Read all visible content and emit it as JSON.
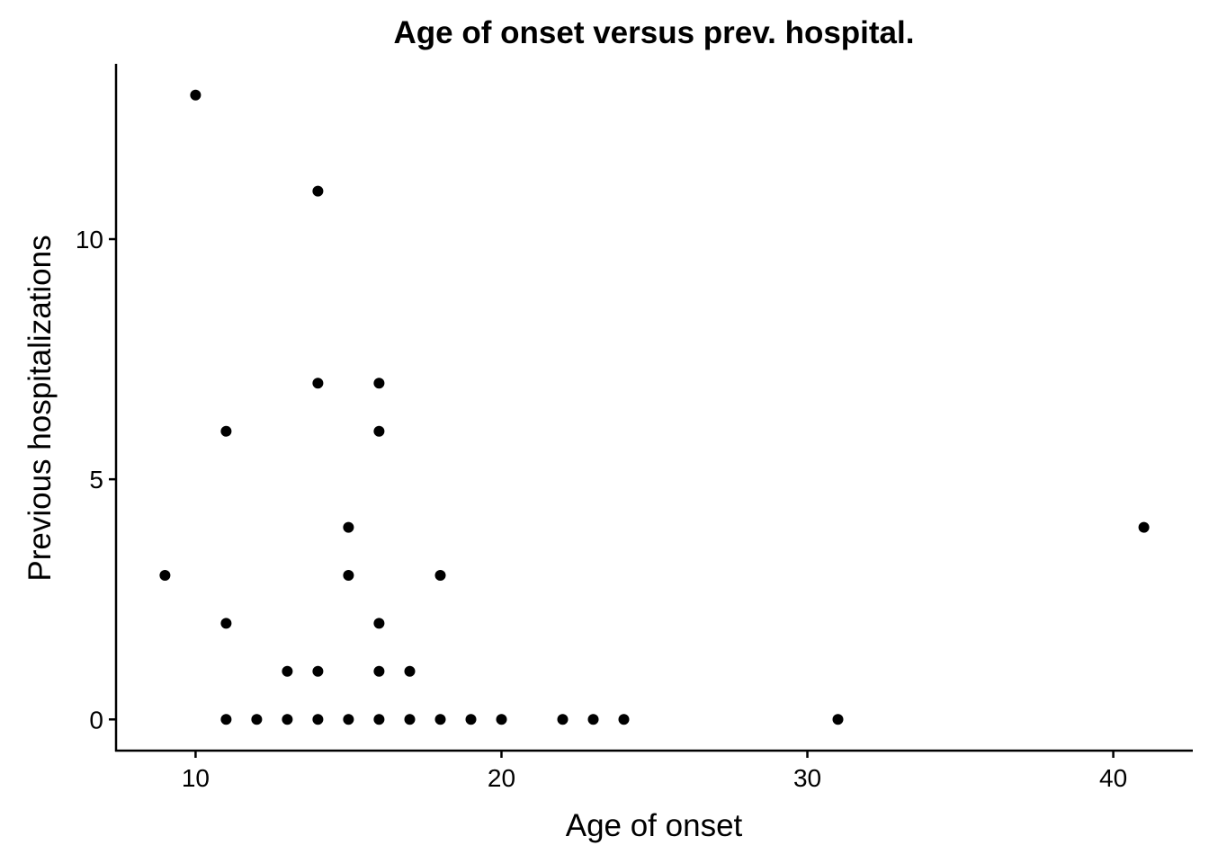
{
  "chart_data": {
    "type": "scatter",
    "title": "Age of onset versus prev. hospital.",
    "xlabel": "Age of onset",
    "ylabel": "Previous hospitalizations",
    "xlim": [
      7.4,
      42.6
    ],
    "ylim": [
      -0.65,
      13.65
    ],
    "x_ticks": [
      10,
      20,
      30,
      40
    ],
    "y_ticks": [
      0,
      5,
      10
    ],
    "grid": false,
    "legend": "none",
    "points": [
      [
        10,
        13
      ],
      [
        14,
        11
      ],
      [
        14,
        7
      ],
      [
        16,
        7
      ],
      [
        11,
        6
      ],
      [
        16,
        6
      ],
      [
        15,
        4
      ],
      [
        41,
        4
      ],
      [
        9,
        3
      ],
      [
        15,
        3
      ],
      [
        18,
        3
      ],
      [
        11,
        2
      ],
      [
        16,
        2
      ],
      [
        13,
        1
      ],
      [
        14,
        1
      ],
      [
        16,
        1
      ],
      [
        17,
        1
      ],
      [
        11,
        0
      ],
      [
        12,
        0
      ],
      [
        13,
        0
      ],
      [
        14,
        0
      ],
      [
        15,
        0
      ],
      [
        16,
        0
      ],
      [
        17,
        0
      ],
      [
        18,
        0
      ],
      [
        19,
        0
      ],
      [
        20,
        0
      ],
      [
        22,
        0
      ],
      [
        23,
        0
      ],
      [
        24,
        0
      ],
      [
        31,
        0
      ]
    ]
  }
}
